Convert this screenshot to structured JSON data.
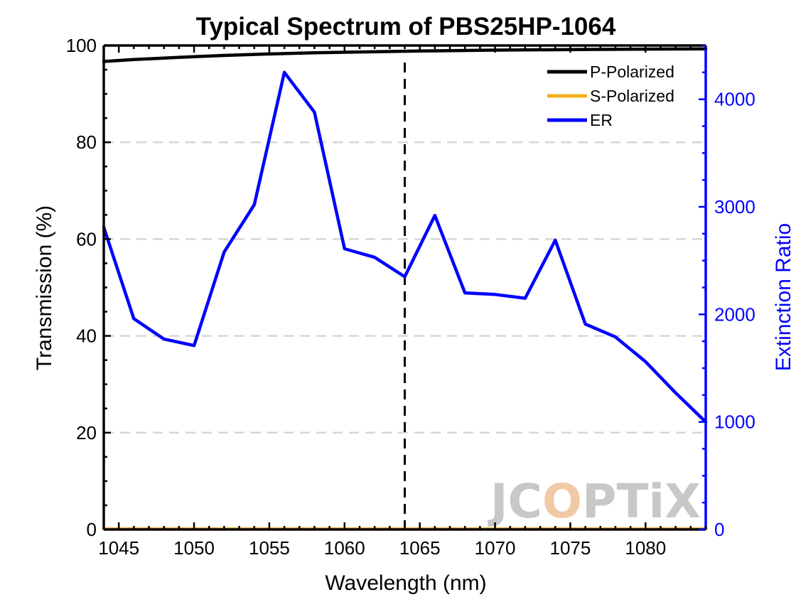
{
  "chart_data": {
    "type": "line",
    "title": "Typical Spectrum of PBS25HP-1064",
    "xlabel": "Wavelength (nm)",
    "ylabel": "Transmission (%)",
    "ylabel_right": "Extinction Ratio",
    "xlim": [
      1044,
      1084
    ],
    "ylim": [
      0,
      100
    ],
    "ylim_right": [
      0,
      4500
    ],
    "xticks": [
      1045,
      1050,
      1055,
      1060,
      1065,
      1070,
      1075,
      1080
    ],
    "yticks": [
      0,
      20,
      40,
      60,
      80,
      100
    ],
    "yticks_right": [
      0,
      1000,
      2000,
      3000,
      4000
    ],
    "grid": "horizontal dashed at left-axis ticks",
    "reference_line": {
      "x": 1064,
      "style": "dashed",
      "color": "#000000"
    },
    "legend_position": "top-right",
    "series": [
      {
        "name": "P-Polarized",
        "axis": "left",
        "color": "#000000",
        "x": [
          1044,
          1046,
          1048,
          1050,
          1052,
          1055,
          1058,
          1060,
          1065,
          1070,
          1075,
          1080,
          1084
        ],
        "y": [
          96.7,
          97.1,
          97.4,
          97.7,
          97.95,
          98.25,
          98.5,
          98.6,
          98.85,
          99.05,
          99.15,
          99.25,
          99.3
        ]
      },
      {
        "name": "S-Polarized",
        "axis": "left",
        "color": "#EDB120",
        "x": [
          1044,
          1084
        ],
        "y": [
          0.1,
          0.1
        ]
      },
      {
        "name": "ER",
        "axis": "right",
        "color": "#0000FF",
        "x": [
          1044,
          1046,
          1048,
          1050,
          1052,
          1054,
          1056,
          1058,
          1060,
          1062,
          1064,
          1066,
          1068,
          1070,
          1072,
          1074,
          1076,
          1078,
          1080,
          1082,
          1084
        ],
        "y": [
          2810,
          1960,
          1770,
          1710,
          2580,
          3020,
          4250,
          3880,
          2610,
          2530,
          2350,
          2920,
          2200,
          2185,
          2150,
          2690,
          1910,
          1790,
          1560,
          1270,
          1000
        ]
      }
    ]
  },
  "watermark": {
    "left": "JC",
    "mid": "O",
    "right": "PTiX"
  },
  "colors": {
    "axis_left": "#000000",
    "axis_right": "#0000FF",
    "grid": "#d6d6d6",
    "watermark": "#c8c8c8",
    "watermark_accent": "#f1c9a4"
  }
}
